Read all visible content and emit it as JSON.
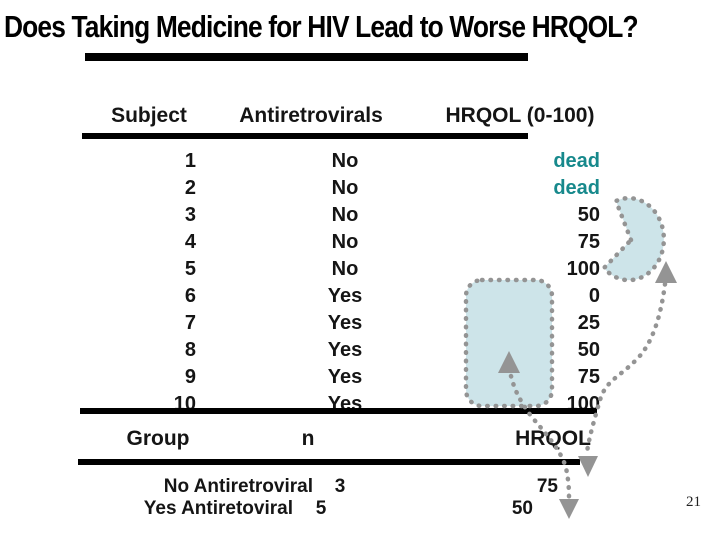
{
  "slide": {
    "title": "Does Taking Medicine for HIV Lead to Worse HRQOL?",
    "page_number": "21"
  },
  "data_table": {
    "headers": {
      "subject": "Subject",
      "antiretrovirals": "Antiretrovirals",
      "hrqol": "HRQOL (0-100)"
    },
    "rows": [
      {
        "subject": "1",
        "antiretrovirals": "No",
        "hrqol": "dead",
        "is_dead": true
      },
      {
        "subject": "2",
        "antiretrovirals": "No",
        "hrqol": "dead",
        "is_dead": true
      },
      {
        "subject": "3",
        "antiretrovirals": "No",
        "hrqol": "50",
        "is_dead": false
      },
      {
        "subject": "4",
        "antiretrovirals": "No",
        "hrqol": "75",
        "is_dead": false
      },
      {
        "subject": "5",
        "antiretrovirals": "No",
        "hrqol": "100",
        "is_dead": false
      },
      {
        "subject": "6",
        "antiretrovirals": "Yes",
        "hrqol": "0",
        "is_dead": false
      },
      {
        "subject": "7",
        "antiretrovirals": "Yes",
        "hrqol": "25",
        "is_dead": false
      },
      {
        "subject": "8",
        "antiretrovirals": "Yes",
        "hrqol": "50",
        "is_dead": false
      },
      {
        "subject": "9",
        "antiretrovirals": "Yes",
        "hrqol": "75",
        "is_dead": false
      },
      {
        "subject": "10",
        "antiretrovirals": "Yes",
        "hrqol": "100",
        "is_dead": false
      }
    ]
  },
  "summary_table": {
    "headers": {
      "group": "Group",
      "n": "n",
      "hrqol": "HRQOL"
    },
    "rows": [
      {
        "group": "No Antiretroviral",
        "n": "3",
        "hrqol": "75"
      },
      {
        "group": "Yes Antiretoviral",
        "n": "5",
        "hrqol": "50"
      }
    ]
  },
  "annotations": {
    "shapes": [
      "pacman-highlight-shape",
      "group-highlight-rect"
    ],
    "arrows": [
      "curved-arrow-right",
      "curved-arrow-left"
    ]
  },
  "colors": {
    "dead_text": "#17898c",
    "highlight_fill": "#cde4e9",
    "dash_gray": "#949494",
    "text": "#151515",
    "rule": "#000000"
  }
}
